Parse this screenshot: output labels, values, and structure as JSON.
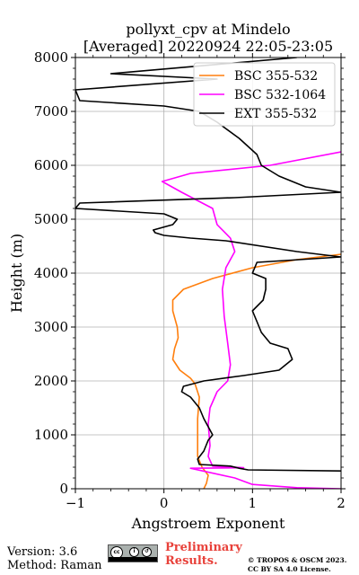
{
  "chart_data": {
    "type": "line",
    "title_line1": "pollyxt_cpv at Mindelo",
    "title_line2": "[Averaged] 20220924 22:05-23:05",
    "xlabel": "Angstroem Exponent",
    "ylabel": "Height (m)",
    "xlim": [
      -1,
      2
    ],
    "ylim": [
      0,
      8000
    ],
    "x_ticks": [
      -1,
      0,
      1,
      2
    ],
    "y_ticks": [
      0,
      1000,
      2000,
      3000,
      4000,
      5000,
      6000,
      7000,
      8000
    ],
    "grid": true,
    "legend_position": "top-right",
    "series": [
      {
        "name": "BSC 355-532",
        "color": "#ff7f0e",
        "points": [
          [
            0.45,
            0
          ],
          [
            0.48,
            100
          ],
          [
            0.5,
            250
          ],
          [
            0.43,
            400
          ],
          [
            0.38,
            600
          ],
          [
            0.38,
            900
          ],
          [
            0.38,
            1300
          ],
          [
            0.4,
            1700
          ],
          [
            0.35,
            1950
          ],
          [
            0.3,
            2050
          ],
          [
            0.18,
            2200
          ],
          [
            0.1,
            2400
          ],
          [
            0.12,
            2600
          ],
          [
            0.16,
            2800
          ],
          [
            0.15,
            3000
          ],
          [
            0.1,
            3300
          ],
          [
            0.1,
            3500
          ],
          [
            0.22,
            3700
          ],
          [
            0.55,
            3900
          ],
          [
            1.0,
            4100
          ],
          [
            1.5,
            4250
          ],
          [
            2.0,
            4350
          ]
        ]
      },
      {
        "name": "BSC 532-1064",
        "color": "#ff00ff",
        "points": [
          [
            2.0,
            0
          ],
          [
            1.5,
            20
          ],
          [
            1.0,
            80
          ],
          [
            0.8,
            200
          ],
          [
            0.3,
            380
          ],
          [
            0.9,
            390
          ],
          [
            0.55,
            420
          ],
          [
            0.5,
            600
          ],
          [
            0.52,
            800
          ],
          [
            0.5,
            1200
          ],
          [
            0.52,
            1500
          ],
          [
            0.6,
            1800
          ],
          [
            0.72,
            2000
          ],
          [
            0.75,
            2300
          ],
          [
            0.72,
            2700
          ],
          [
            0.68,
            3200
          ],
          [
            0.66,
            3700
          ],
          [
            0.7,
            4100
          ],
          [
            0.8,
            4400
          ],
          [
            0.75,
            4650
          ],
          [
            0.6,
            4900
          ],
          [
            0.55,
            5200
          ],
          [
            0.2,
            5500
          ],
          [
            -0.02,
            5700
          ],
          [
            0.3,
            5850
          ],
          [
            1.2,
            6000
          ],
          [
            2.0,
            6250
          ]
        ]
      },
      {
        "name": "EXT 355-532",
        "color": "#000000",
        "points": [
          [
            2.0,
            330
          ],
          [
            0.95,
            350
          ],
          [
            0.85,
            380
          ],
          [
            0.75,
            420
          ],
          [
            0.4,
            450
          ],
          [
            0.38,
            550
          ],
          [
            0.45,
            700
          ],
          [
            0.5,
            900
          ],
          [
            0.55,
            1000
          ],
          [
            0.5,
            1150
          ],
          [
            0.45,
            1300
          ],
          [
            0.4,
            1500
          ],
          [
            0.3,
            1700
          ],
          [
            0.2,
            1800
          ],
          [
            0.22,
            1900
          ],
          [
            0.45,
            2000
          ],
          [
            0.9,
            2100
          ],
          [
            1.3,
            2200
          ],
          [
            1.45,
            2400
          ],
          [
            1.4,
            2600
          ],
          [
            1.2,
            2700
          ],
          [
            1.1,
            2900
          ],
          [
            1.05,
            3100
          ],
          [
            1.0,
            3300
          ],
          [
            1.12,
            3500
          ],
          [
            1.15,
            3700
          ],
          [
            1.15,
            3900
          ],
          [
            1.0,
            4000
          ],
          [
            1.05,
            4200
          ],
          [
            2.0,
            4300
          ],
          [
            1.5,
            4400
          ],
          [
            0.7,
            4600
          ],
          [
            0.3,
            4650
          ],
          [
            0.0,
            4700
          ],
          [
            -0.1,
            4750
          ],
          [
            -0.12,
            4800
          ],
          [
            0.1,
            4900
          ],
          [
            0.15,
            5000
          ],
          [
            0.0,
            5100
          ],
          [
            -1.0,
            5200
          ],
          [
            -0.95,
            5300
          ],
          [
            0.8,
            5400
          ],
          [
            2.0,
            5500
          ],
          [
            1.6,
            5600
          ],
          [
            1.3,
            5800
          ],
          [
            1.1,
            6000
          ],
          [
            1.05,
            6200
          ],
          [
            0.85,
            6500
          ],
          [
            0.6,
            6800
          ],
          [
            0.4,
            7000
          ],
          [
            0.0,
            7100
          ],
          [
            -0.95,
            7200
          ],
          [
            -1.0,
            7400
          ],
          [
            0.6,
            7600
          ],
          [
            -0.6,
            7700
          ],
          [
            1.5,
            8000
          ]
        ]
      }
    ]
  },
  "footer": {
    "version": "Version: 3.6",
    "method": "Method: Raman",
    "preliminary_line1": "Preliminary",
    "preliminary_line2": "Results.",
    "copyright_line1": "© TROPOS & OSCM 2023.",
    "copyright_line2": "CC BY SA 4.0 License."
  },
  "license_logo": {
    "icons": [
      "cc-icon",
      "by-icon",
      "sa-icon"
    ],
    "colors": {
      "badge": "#aab1ae",
      "band": "#000000"
    }
  }
}
